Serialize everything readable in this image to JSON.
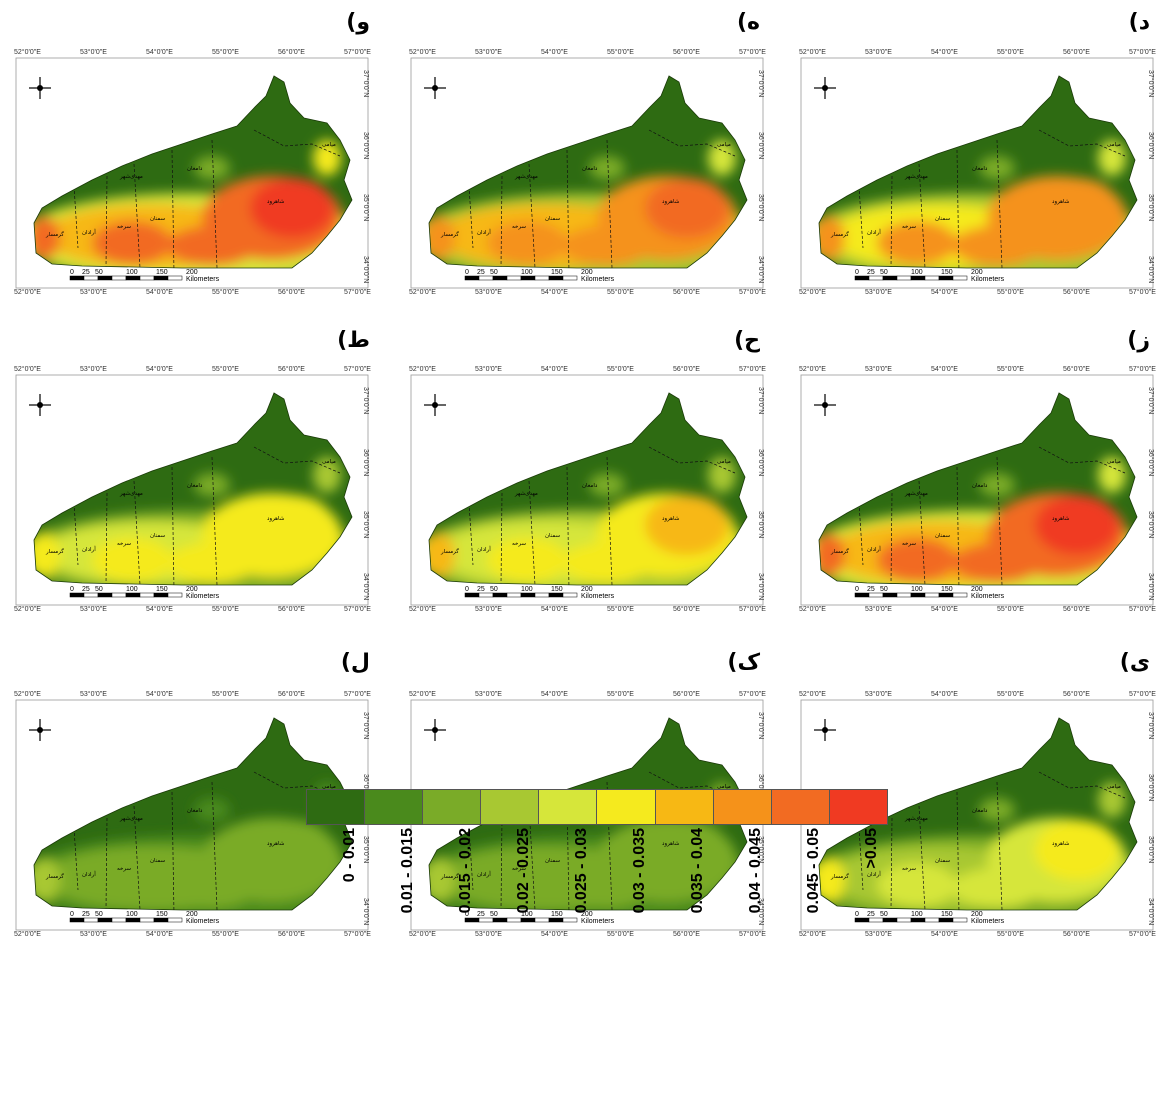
{
  "panels": [
    {
      "id": "d",
      "label": "د)",
      "row": 0,
      "col": 2,
      "hot": 0.7
    },
    {
      "id": "h",
      "label": "ه)",
      "row": 0,
      "col": 1,
      "hot": 0.75
    },
    {
      "id": "w",
      "label": "و)",
      "row": 0,
      "col": 0,
      "hot": 0.9
    },
    {
      "id": "z",
      "label": "ز)",
      "row": 1,
      "col": 2,
      "hot": 0.85
    },
    {
      "id": "hh",
      "label": "ح)",
      "row": 1,
      "col": 1,
      "hot": 0.55
    },
    {
      "id": "t",
      "label": "ط)",
      "row": 1,
      "col": 0,
      "hot": 0.45
    },
    {
      "id": "y",
      "label": "ی)",
      "row": 2,
      "col": 2,
      "hot": 0.4
    },
    {
      "id": "k",
      "label": "ک)",
      "row": 2,
      "col": 1,
      "hot": 0.15
    },
    {
      "id": "l",
      "label": "ل)",
      "row": 2,
      "col": 0,
      "hot": 0.1
    }
  ],
  "axes": {
    "lon_ticks": [
      "52°0'0\"E",
      "53°0'0\"E",
      "54°0'0\"E",
      "55°0'0\"E",
      "56°0'0\"E",
      "57°0'0\"E"
    ],
    "lat_ticks": [
      "37°0'0\"N",
      "36°0'0\"N",
      "35°0'0\"N",
      "34°0'0\"N"
    ]
  },
  "scalebar": {
    "ticks": [
      "0",
      "25",
      "50",
      "100",
      "150",
      "200"
    ],
    "unit": "Kilometers"
  },
  "towns": [
    "گرمسار",
    "آرادان",
    "سرخه",
    "سمنان",
    "مهدی‌شهر",
    "دامغان",
    "شاهرود",
    "میامی"
  ],
  "legend": {
    "classes": [
      {
        "label": "0 - 0.01",
        "color": "#2e6b12"
      },
      {
        "label": "0.01 - 0.015",
        "color": "#4a8a1c"
      },
      {
        "label": "0.015 - 0.02",
        "color": "#7aab28"
      },
      {
        "label": "0.02 - 0.025",
        "color": "#a8c832"
      },
      {
        "label": "0.025 - 0.03",
        "color": "#d6e63a"
      },
      {
        "label": "0.03 - 0.035",
        "color": "#f5ea1e"
      },
      {
        "label": "0.035 - 0.04",
        "color": "#f7b814"
      },
      {
        "label": "0.04 - 0.045",
        "color": "#f5921a"
      },
      {
        "label": "0.045 - 0.05",
        "color": "#f26b22"
      },
      {
        "label": ">0.05",
        "color": "#f03a22"
      }
    ]
  }
}
